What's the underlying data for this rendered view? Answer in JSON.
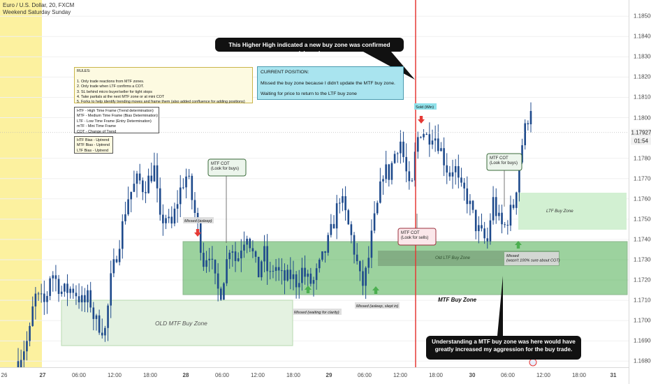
{
  "header": {
    "symbol": "Euro / U.S. Dollar, 20, FXCM",
    "session": "Weekend Saturday Sunday"
  },
  "colors": {
    "weekend": "#fbee8e",
    "mtf_zone": "#4caf50",
    "ltf_zone": "#cdeecd",
    "old_zone": "#e4f2e1",
    "candle": "#1e4a8c",
    "red_line": "#e53935",
    "rules_bg": "#fdfae1",
    "position_bg": "#a9e4ef",
    "red_arrow": "#e53935",
    "green_arrow": "#4caf50"
  },
  "rules_box": {
    "lines": [
      "RULES:",
      "",
      "1. Only trade reactions from MTF zones.",
      "2. Only trade when LTF confirms a COT.",
      "3. SL behind micro buyer/seller for tight stops",
      "4. Take partials at the next MTF zone or at mini COT",
      "5. Forks to help identify trending moves and frame them (also added confluence for adding positions)"
    ]
  },
  "timeframe_box": {
    "lines": [
      "HTF - High Time Frame (Trend determination)",
      "MTF - Medium Time Frame (Bias Determination)",
      "LTF - Low Time Frame (Entry Determination)",
      "mTF - Mini Time Frame",
      "COT - Change of Trend"
    ]
  },
  "bias_box": {
    "lines": [
      "HTF Bias - Uptrend",
      "MTF Bias - Uptrend",
      "LTF Bias - Uptrend"
    ]
  },
  "position_box": {
    "title": "CURRENT POSITION:",
    "line1": "Missed the buy zone because I didn't update the MTF buy zone.",
    "line2": "Waiting for price to return to the LTF buy zone"
  },
  "callouts": {
    "top": "This Higher High indicated a new buy zone was confirmed (shown)",
    "bottom": "Understanding a MTF buy zone was here would have greatly increased my aggression for the buy trade."
  },
  "annotations": {
    "missed_asleep": "Missed (asleep)",
    "mtf_cot_1": "MTF COT\n(Look for buys)",
    "missed_waiting": "Missed (waiting for clarity)",
    "missed_slept": "Missed (asleep, slept in)",
    "mtf_cot_sells": "MTF COT\n(Look for sells)",
    "sold_win": "Sold (Win)",
    "mtf_cot_2": "MTF COT\n(Look for buys)",
    "missed_not_sure": "Missed\n(wasn't 100% sure about COT)",
    "ltf_buy_zone": "LTF Buy Zone",
    "old_ltf_buy_zone": "Old LTF Buy Zone",
    "mtf_buy_zone": "MTF Buy Zone",
    "old_mtf_buy_zone": "OLD MTF Buy Zone"
  },
  "price_axis": {
    "ticks": [
      "1.18500",
      "1.18400",
      "1.18300",
      "1.18200",
      "1.18100",
      "1.18000",
      "1.17800",
      "1.17700",
      "1.17600",
      "1.17500",
      "1.17400",
      "1.17300",
      "1.17200",
      "1.17100",
      "1.17000",
      "1.16900",
      "1.16800"
    ],
    "current_price": "1.17927",
    "timer": "01:54"
  },
  "time_axis": {
    "ticks": [
      "26",
      "27",
      "06:00",
      "12:00",
      "18:00",
      "28",
      "06:00",
      "12:00",
      "18:00",
      "29",
      "06:00",
      "12:00",
      "18:00",
      "30",
      "06:00",
      "12:00",
      "18:00",
      "31"
    ]
  },
  "chart_data": {
    "type": "candlestick",
    "symbol": "Euro / U.S. Dollar, 20, FXCM",
    "ylim": [
      1.1677,
      1.1858
    ],
    "x_ticks": [
      "26",
      "27",
      "06:00",
      "12:00",
      "18:00",
      "28",
      "06:00",
      "12:00",
      "18:00",
      "29",
      "06:00",
      "12:00",
      "18:00",
      "30",
      "06:00",
      "12:00",
      "18:00",
      "31"
    ],
    "path": [
      [
        0,
        1.168
      ],
      [
        2,
        1.1692
      ],
      [
        3,
        1.1712
      ],
      [
        5,
        1.1708
      ],
      [
        6,
        1.1725
      ],
      [
        8,
        1.1714
      ],
      [
        10,
        1.1716
      ],
      [
        12,
        1.1708
      ],
      [
        13,
        1.1712
      ],
      [
        14,
        1.17
      ],
      [
        16,
        1.1695
      ],
      [
        17,
        1.172
      ],
      [
        19,
        1.1745
      ],
      [
        20,
        1.176
      ],
      [
        22,
        1.177
      ],
      [
        23,
        1.1765
      ],
      [
        25,
        1.1775
      ],
      [
        26,
        1.1748
      ],
      [
        27,
        1.1752
      ],
      [
        28,
        1.1745
      ],
      [
        29,
        1.1757
      ],
      [
        30,
        1.1767
      ],
      [
        31,
        1.1772
      ],
      [
        32,
        1.1758
      ],
      [
        33,
        1.1745
      ],
      [
        34,
        1.1729
      ],
      [
        35,
        1.1735
      ],
      [
        36,
        1.172
      ],
      [
        37,
        1.1712
      ],
      [
        38,
        1.1726
      ],
      [
        39,
        1.174
      ],
      [
        40,
        1.1728
      ],
      [
        41,
        1.1738
      ],
      [
        42,
        1.1744
      ],
      [
        43,
        1.1733
      ],
      [
        44,
        1.1722
      ],
      [
        45,
        1.1735
      ],
      [
        46,
        1.172
      ],
      [
        47,
        1.1728
      ],
      [
        48,
        1.1722
      ],
      [
        49,
        1.172
      ],
      [
        50,
        1.1722
      ],
      [
        51,
        1.1719
      ],
      [
        52,
        1.1725
      ],
      [
        53,
        1.172
      ],
      [
        54,
        1.1718
      ],
      [
        55,
        1.1725
      ],
      [
        56,
        1.1732
      ],
      [
        57,
        1.174
      ],
      [
        58,
        1.175
      ],
      [
        59,
        1.1762
      ],
      [
        60,
        1.1752
      ],
      [
        61,
        1.1742
      ],
      [
        62,
        1.173
      ],
      [
        63,
        1.1716
      ],
      [
        64,
        1.1726
      ],
      [
        65,
        1.1745
      ],
      [
        66,
        1.1758
      ],
      [
        67,
        1.1775
      ],
      [
        68,
        1.1772
      ],
      [
        69,
        1.1782
      ],
      [
        70,
        1.179
      ],
      [
        71,
        1.1775
      ],
      [
        72,
        1.176
      ],
      [
        73,
        1.1788
      ],
      [
        74,
        1.1795
      ],
      [
        75,
        1.179
      ],
      [
        76,
        1.1793
      ],
      [
        77,
        1.1788
      ],
      [
        78,
        1.178
      ],
      [
        79,
        1.1772
      ],
      [
        80,
        1.1777
      ],
      [
        81,
        1.1764
      ],
      [
        82,
        1.1763
      ],
      [
        83,
        1.1755
      ],
      [
        84,
        1.1746
      ],
      [
        85,
        1.1742
      ],
      [
        86,
        1.1738
      ],
      [
        87,
        1.176
      ],
      [
        88,
        1.175
      ],
      [
        89,
        1.1745
      ],
      [
        90,
        1.1752
      ],
      [
        91,
        1.1758
      ],
      [
        92,
        1.1782
      ],
      [
        93,
        1.1795
      ],
      [
        94,
        1.1806
      ]
    ]
  }
}
